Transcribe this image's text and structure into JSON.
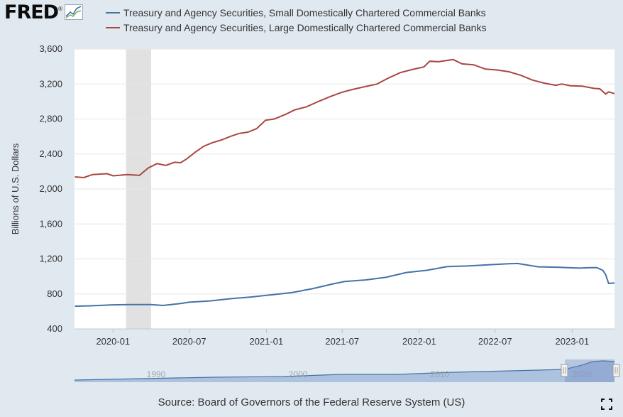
{
  "logo": {
    "text": "FRED",
    "registered": "®",
    "icon": "mini-line-chart-icon"
  },
  "colors": {
    "series1": "#4572a7",
    "series2": "#aa4643",
    "recession": "#e1e1e1",
    "plot_bg": "#ffffff",
    "page_bg": "#e1e9f0",
    "navigator_fill": "#8aa9d2"
  },
  "chart_data": {
    "type": "line",
    "title": "",
    "xlabel": "",
    "ylabel": "Billions of U.S. Dollars",
    "ylim": [
      400,
      3600
    ],
    "yticks": [
      400,
      800,
      1200,
      1600,
      2000,
      2400,
      2800,
      3200,
      3600
    ],
    "ytick_labels": [
      "400",
      "800",
      "1,200",
      "1,600",
      "2,000",
      "2,400",
      "2,800",
      "3,200",
      "3,600"
    ],
    "xlim": [
      "2019-10-01",
      "2023-04-12"
    ],
    "xticks": [
      "2020-01-01",
      "2020-07-01",
      "2021-01-01",
      "2021-07-01",
      "2022-01-01",
      "2022-07-01",
      "2023-01-01"
    ],
    "xtick_labels": [
      "2020-01",
      "2020-07",
      "2021-01",
      "2021-07",
      "2022-01",
      "2022-07",
      "2023-01"
    ],
    "recession": {
      "start": "2020-02-01",
      "end": "2020-04-01"
    },
    "legend_position": "top",
    "series": [
      {
        "name": "Treasury and Agency Securities, Small Domestically Chartered Commercial Banks",
        "points": [
          [
            "2019-10-02",
            660
          ],
          [
            "2019-11-13",
            665
          ],
          [
            "2020-01-01",
            675
          ],
          [
            "2020-02-12",
            678
          ],
          [
            "2020-04-01",
            678
          ],
          [
            "2020-04-29",
            668
          ],
          [
            "2020-06-10",
            690
          ],
          [
            "2020-07-01",
            705
          ],
          [
            "2020-08-19",
            720
          ],
          [
            "2020-10-07",
            745
          ],
          [
            "2020-11-25",
            765
          ],
          [
            "2021-01-13",
            790
          ],
          [
            "2021-03-03",
            815
          ],
          [
            "2021-04-21",
            860
          ],
          [
            "2021-06-09",
            915
          ],
          [
            "2021-07-07",
            942
          ],
          [
            "2021-08-25",
            960
          ],
          [
            "2021-10-13",
            990
          ],
          [
            "2021-12-01",
            1045
          ],
          [
            "2022-01-19",
            1070
          ],
          [
            "2022-03-09",
            1112
          ],
          [
            "2022-04-27",
            1120
          ],
          [
            "2022-06-15",
            1133
          ],
          [
            "2022-08-03",
            1145
          ],
          [
            "2022-08-24",
            1148
          ],
          [
            "2022-10-12",
            1110
          ],
          [
            "2022-11-30",
            1105
          ],
          [
            "2023-01-18",
            1095
          ],
          [
            "2023-02-15",
            1100
          ],
          [
            "2023-03-01",
            1100
          ],
          [
            "2023-03-15",
            1070
          ],
          [
            "2023-03-22",
            1020
          ],
          [
            "2023-03-29",
            920
          ],
          [
            "2023-04-12",
            925
          ]
        ]
      },
      {
        "name": "Treasury and Agency Securities, Large Domestically Chartered Commercial Banks",
        "points": [
          [
            "2019-10-02",
            2138
          ],
          [
            "2019-10-23",
            2130
          ],
          [
            "2019-11-13",
            2165
          ],
          [
            "2019-12-18",
            2175
          ],
          [
            "2020-01-01",
            2150
          ],
          [
            "2020-02-05",
            2165
          ],
          [
            "2020-03-04",
            2155
          ],
          [
            "2020-03-25",
            2240
          ],
          [
            "2020-04-15",
            2290
          ],
          [
            "2020-05-06",
            2270
          ],
          [
            "2020-05-27",
            2305
          ],
          [
            "2020-06-10",
            2300
          ],
          [
            "2020-06-24",
            2340
          ],
          [
            "2020-07-15",
            2420
          ],
          [
            "2020-08-05",
            2490
          ],
          [
            "2020-08-26",
            2530
          ],
          [
            "2020-09-16",
            2560
          ],
          [
            "2020-10-07",
            2600
          ],
          [
            "2020-10-28",
            2635
          ],
          [
            "2020-11-18",
            2650
          ],
          [
            "2020-12-09",
            2690
          ],
          [
            "2020-12-30",
            2785
          ],
          [
            "2021-01-20",
            2800
          ],
          [
            "2021-02-17",
            2855
          ],
          [
            "2021-03-10",
            2905
          ],
          [
            "2021-04-07",
            2940
          ],
          [
            "2021-05-05",
            3000
          ],
          [
            "2021-06-02",
            3055
          ],
          [
            "2021-06-30",
            3105
          ],
          [
            "2021-07-28",
            3140
          ],
          [
            "2021-08-25",
            3170
          ],
          [
            "2021-09-22",
            3200
          ],
          [
            "2021-10-20",
            3270
          ],
          [
            "2021-11-17",
            3330
          ],
          [
            "2021-12-15",
            3365
          ],
          [
            "2022-01-12",
            3395
          ],
          [
            "2022-01-26",
            3460
          ],
          [
            "2022-02-16",
            3455
          ],
          [
            "2022-03-09",
            3470
          ],
          [
            "2022-03-23",
            3480
          ],
          [
            "2022-04-13",
            3430
          ],
          [
            "2022-05-11",
            3420
          ],
          [
            "2022-06-08",
            3370
          ],
          [
            "2022-07-06",
            3360
          ],
          [
            "2022-08-03",
            3340
          ],
          [
            "2022-08-31",
            3300
          ],
          [
            "2022-09-28",
            3245
          ],
          [
            "2022-10-26",
            3210
          ],
          [
            "2022-11-23",
            3185
          ],
          [
            "2022-12-07",
            3200
          ],
          [
            "2022-12-28",
            3180
          ],
          [
            "2023-01-25",
            3175
          ],
          [
            "2023-02-22",
            3150
          ],
          [
            "2023-03-08",
            3145
          ],
          [
            "2023-03-22",
            3085
          ],
          [
            "2023-03-29",
            3110
          ],
          [
            "2023-04-12",
            3090
          ]
        ]
      }
    ]
  },
  "navigator": {
    "labels": [
      "1990",
      "2000",
      "2010",
      "2020"
    ],
    "selected_range": [
      "2019-10",
      "2023-04"
    ]
  },
  "source_text": "Source: Board of Governors of the Federal Reserve System (US)",
  "fullscreen_icon": "fullscreen-icon"
}
